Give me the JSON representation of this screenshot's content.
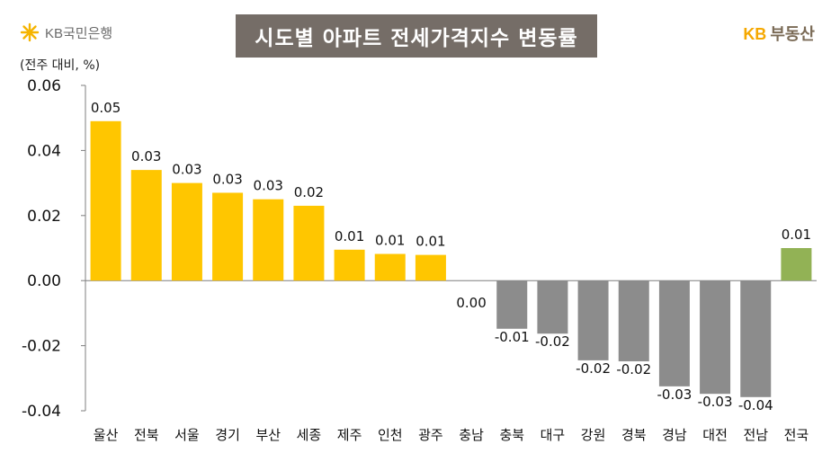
{
  "header": {
    "left_logo_text": "KB국민은행",
    "title": "시도별 아파트 전세가격지수 변동률",
    "right_logo_kb": "KB",
    "right_logo_name": "부동산",
    "unit": "(전주 대비, %)"
  },
  "icons": {
    "left_logo": "kb-star-icon"
  },
  "colors": {
    "positive": "#ffc600",
    "negative": "#8c8c8c",
    "national": "#92b255",
    "title_bg": "#756d67"
  },
  "chart_data": {
    "type": "bar",
    "title": "시도별 아파트 전세가격지수 변동률",
    "ylabel": "(전주 대비, %)",
    "xlabel": "",
    "ylim": [
      -0.04,
      0.06
    ],
    "yticks": [
      "0.06",
      "0.04",
      "0.02",
      "0.00",
      "-0.02",
      "-0.04"
    ],
    "ytick_values": [
      0.06,
      0.04,
      0.02,
      0.0,
      -0.02,
      -0.04
    ],
    "grid": false,
    "categories": [
      "울산",
      "전북",
      "서울",
      "경기",
      "부산",
      "세종",
      "제주",
      "인천",
      "광주",
      "충남",
      "충북",
      "대구",
      "강원",
      "경북",
      "경남",
      "대전",
      "전남",
      "전국"
    ],
    "values": [
      0.049,
      0.034,
      0.03,
      0.027,
      0.025,
      0.023,
      0.0095,
      0.0082,
      0.0079,
      0.0,
      -0.0148,
      -0.0163,
      -0.0245,
      -0.0248,
      -0.0325,
      -0.0348,
      -0.0358,
      0.01
    ],
    "labels": [
      "0.05",
      "0.03",
      "0.03",
      "0.03",
      "0.03",
      "0.02",
      "0.01",
      "0.01",
      "0.01",
      "0.00",
      "-0.01",
      "-0.02",
      "-0.02",
      "-0.02",
      "-0.03",
      "-0.03",
      "-0.04",
      "0.01"
    ]
  }
}
